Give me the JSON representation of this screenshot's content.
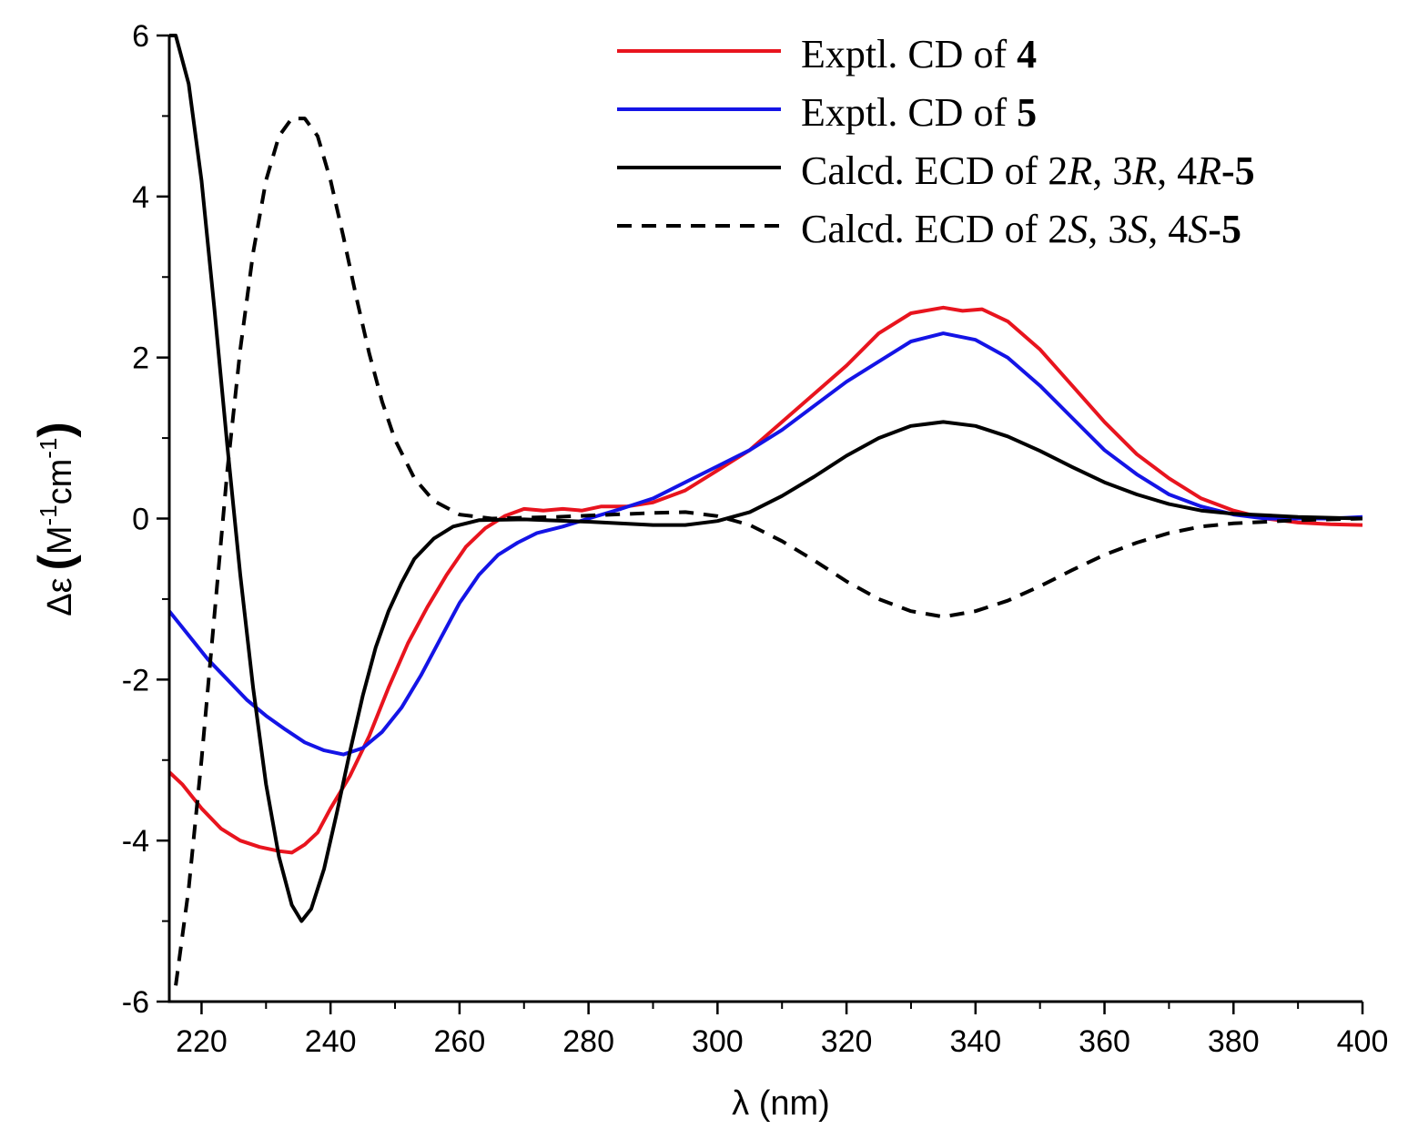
{
  "chart_data": {
    "type": "line",
    "title": "",
    "xlabel": "λ (nm)",
    "ylabel_parts": {
      "symbol": "Δε",
      "open": "(",
      "unit_m": "M",
      "exp1": "-1",
      "unit_cm": "cm",
      "exp2": "-1",
      "close": ")"
    },
    "xlim": [
      215,
      400
    ],
    "ylim": [
      -6,
      6
    ],
    "x_ticks": [
      220,
      240,
      260,
      280,
      300,
      320,
      340,
      360,
      380,
      400
    ],
    "x_tick_labels": [
      "220",
      "240",
      "260",
      "280",
      "300",
      "320",
      "340",
      "360",
      "380",
      "400"
    ],
    "y_ticks": [
      -6,
      -4,
      -2,
      0,
      2,
      4,
      6
    ],
    "y_tick_labels": [
      "-6",
      "-4",
      "-2",
      "0",
      "2",
      "4",
      "6"
    ],
    "legend_position": "top-right",
    "series": [
      {
        "name": "Exptl. CD of 4",
        "legend": {
          "prefix": "Exptl. CD of ",
          "bold": "4"
        },
        "color": "#e8141e",
        "dash": "solid",
        "points": [
          [
            215,
            -3.15
          ],
          [
            217,
            -3.3
          ],
          [
            220,
            -3.6
          ],
          [
            223,
            -3.85
          ],
          [
            226,
            -4.0
          ],
          [
            229,
            -4.08
          ],
          [
            232,
            -4.13
          ],
          [
            234,
            -4.15
          ],
          [
            236,
            -4.05
          ],
          [
            238,
            -3.9
          ],
          [
            240,
            -3.6
          ],
          [
            243,
            -3.2
          ],
          [
            246,
            -2.7
          ],
          [
            249,
            -2.1
          ],
          [
            252,
            -1.55
          ],
          [
            255,
            -1.1
          ],
          [
            258,
            -0.7
          ],
          [
            261,
            -0.35
          ],
          [
            264,
            -0.12
          ],
          [
            267,
            0.03
          ],
          [
            270,
            0.12
          ],
          [
            273,
            0.1
          ],
          [
            276,
            0.12
          ],
          [
            279,
            0.1
          ],
          [
            282,
            0.15
          ],
          [
            286,
            0.15
          ],
          [
            290,
            0.2
          ],
          [
            295,
            0.35
          ],
          [
            300,
            0.6
          ],
          [
            305,
            0.85
          ],
          [
            310,
            1.2
          ],
          [
            315,
            1.55
          ],
          [
            320,
            1.9
          ],
          [
            325,
            2.3
          ],
          [
            330,
            2.55
          ],
          [
            335,
            2.62
          ],
          [
            338,
            2.58
          ],
          [
            341,
            2.6
          ],
          [
            345,
            2.45
          ],
          [
            350,
            2.1
          ],
          [
            355,
            1.65
          ],
          [
            360,
            1.2
          ],
          [
            365,
            0.8
          ],
          [
            370,
            0.5
          ],
          [
            375,
            0.25
          ],
          [
            380,
            0.1
          ],
          [
            385,
            0.0
          ],
          [
            390,
            -0.05
          ],
          [
            395,
            -0.07
          ],
          [
            400,
            -0.08
          ]
        ]
      },
      {
        "name": "Exptl. CD of 5",
        "legend": {
          "prefix": "Exptl. CD of ",
          "bold": "5"
        },
        "color": "#1414e6",
        "dash": "solid",
        "points": [
          [
            215,
            -1.15
          ],
          [
            218,
            -1.45
          ],
          [
            221,
            -1.75
          ],
          [
            224,
            -2.0
          ],
          [
            227,
            -2.25
          ],
          [
            230,
            -2.45
          ],
          [
            233,
            -2.62
          ],
          [
            236,
            -2.78
          ],
          [
            239,
            -2.88
          ],
          [
            242,
            -2.93
          ],
          [
            245,
            -2.85
          ],
          [
            248,
            -2.65
          ],
          [
            251,
            -2.35
          ],
          [
            254,
            -1.95
          ],
          [
            257,
            -1.5
          ],
          [
            260,
            -1.05
          ],
          [
            263,
            -0.7
          ],
          [
            266,
            -0.45
          ],
          [
            269,
            -0.3
          ],
          [
            272,
            -0.18
          ],
          [
            276,
            -0.1
          ],
          [
            280,
            0.0
          ],
          [
            285,
            0.12
          ],
          [
            290,
            0.25
          ],
          [
            295,
            0.45
          ],
          [
            300,
            0.65
          ],
          [
            305,
            0.85
          ],
          [
            310,
            1.1
          ],
          [
            315,
            1.4
          ],
          [
            320,
            1.7
          ],
          [
            325,
            1.95
          ],
          [
            330,
            2.2
          ],
          [
            335,
            2.3
          ],
          [
            340,
            2.22
          ],
          [
            345,
            2.0
          ],
          [
            350,
            1.65
          ],
          [
            355,
            1.25
          ],
          [
            360,
            0.85
          ],
          [
            365,
            0.55
          ],
          [
            370,
            0.3
          ],
          [
            375,
            0.15
          ],
          [
            380,
            0.05
          ],
          [
            385,
            0.0
          ],
          [
            390,
            0.0
          ],
          [
            395,
            0.0
          ],
          [
            400,
            0.02
          ]
        ]
      },
      {
        "name": "Calcd. ECD of 2R, 3R, 4R-5",
        "legend": {
          "prefix": "Calcd. ECD of 2",
          "i1": "R",
          "m1": ", 3",
          "i2": "R",
          "m2": ", 4",
          "i3": "R",
          "bold": "-5"
        },
        "color": "#000000",
        "dash": "solid",
        "points": [
          [
            215,
            6.0
          ],
          [
            216,
            6.0
          ],
          [
            218,
            5.4
          ],
          [
            220,
            4.2
          ],
          [
            222,
            2.6
          ],
          [
            224,
            0.9
          ],
          [
            226,
            -0.7
          ],
          [
            228,
            -2.1
          ],
          [
            230,
            -3.3
          ],
          [
            232,
            -4.2
          ],
          [
            234,
            -4.8
          ],
          [
            235.5,
            -5.0
          ],
          [
            237,
            -4.85
          ],
          [
            239,
            -4.35
          ],
          [
            241,
            -3.65
          ],
          [
            243,
            -2.9
          ],
          [
            245,
            -2.2
          ],
          [
            247,
            -1.6
          ],
          [
            249,
            -1.15
          ],
          [
            251,
            -0.8
          ],
          [
            253,
            -0.5
          ],
          [
            256,
            -0.25
          ],
          [
            259,
            -0.1
          ],
          [
            263,
            -0.02
          ],
          [
            270,
            -0.01
          ],
          [
            280,
            -0.04
          ],
          [
            290,
            -0.08
          ],
          [
            295,
            -0.08
          ],
          [
            300,
            -0.03
          ],
          [
            305,
            0.08
          ],
          [
            310,
            0.28
          ],
          [
            315,
            0.52
          ],
          [
            320,
            0.78
          ],
          [
            325,
            1.0
          ],
          [
            330,
            1.15
          ],
          [
            335,
            1.2
          ],
          [
            340,
            1.15
          ],
          [
            345,
            1.02
          ],
          [
            350,
            0.84
          ],
          [
            355,
            0.64
          ],
          [
            360,
            0.45
          ],
          [
            365,
            0.3
          ],
          [
            370,
            0.18
          ],
          [
            375,
            0.1
          ],
          [
            380,
            0.06
          ],
          [
            390,
            0.02
          ],
          [
            400,
            0.0
          ]
        ]
      },
      {
        "name": "Calcd. ECD of 2S, 3S, 4S-5",
        "legend": {
          "prefix": "Calcd. ECD of 2",
          "i1": "S",
          "m1": ", 3",
          "i2": "S",
          "m2": ", 4",
          "i3": "S",
          "bold": "-5"
        },
        "color": "#000000",
        "dash": "dashed",
        "points": [
          [
            216,
            -5.8
          ],
          [
            218,
            -4.6
          ],
          [
            220,
            -3.0
          ],
          [
            222,
            -1.2
          ],
          [
            224,
            0.6
          ],
          [
            226,
            2.1
          ],
          [
            228,
            3.3
          ],
          [
            230,
            4.2
          ],
          [
            232,
            4.75
          ],
          [
            234,
            4.97
          ],
          [
            236,
            4.97
          ],
          [
            238,
            4.75
          ],
          [
            240,
            4.2
          ],
          [
            242,
            3.5
          ],
          [
            244,
            2.75
          ],
          [
            246,
            2.05
          ],
          [
            248,
            1.45
          ],
          [
            250,
            0.98
          ],
          [
            253,
            0.5
          ],
          [
            256,
            0.22
          ],
          [
            260,
            0.05
          ],
          [
            265,
            0.0
          ],
          [
            275,
            0.02
          ],
          [
            290,
            0.07
          ],
          [
            295,
            0.08
          ],
          [
            300,
            0.03
          ],
          [
            305,
            -0.08
          ],
          [
            310,
            -0.28
          ],
          [
            315,
            -0.52
          ],
          [
            320,
            -0.78
          ],
          [
            325,
            -1.0
          ],
          [
            330,
            -1.15
          ],
          [
            335,
            -1.22
          ],
          [
            340,
            -1.15
          ],
          [
            345,
            -1.02
          ],
          [
            350,
            -0.84
          ],
          [
            355,
            -0.64
          ],
          [
            360,
            -0.45
          ],
          [
            365,
            -0.3
          ],
          [
            370,
            -0.18
          ],
          [
            375,
            -0.1
          ],
          [
            380,
            -0.06
          ],
          [
            390,
            -0.02
          ],
          [
            400,
            0.0
          ]
        ]
      }
    ]
  }
}
